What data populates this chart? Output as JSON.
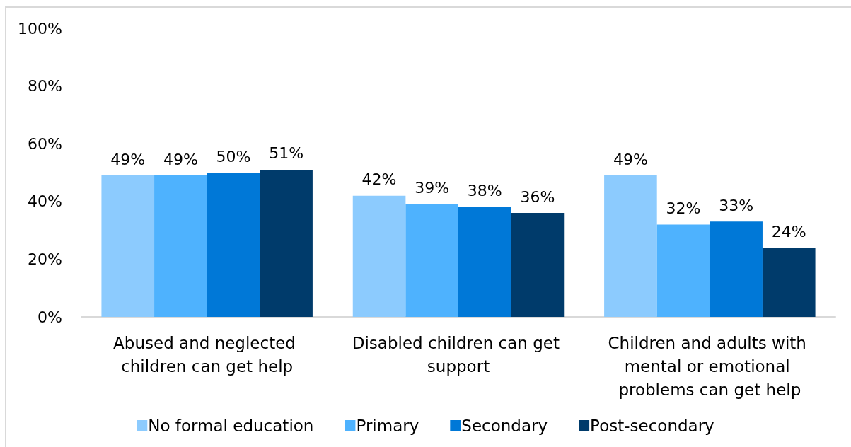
{
  "chart_data": {
    "type": "bar",
    "categories": [
      "Abused and neglected children can get help",
      "Disabled children can get support",
      "Children and adults with mental or emotional problems can get help"
    ],
    "series": [
      {
        "name": "No formal education",
        "color": "#8ccbfe",
        "values": [
          49,
          42,
          49
        ],
        "value_labels": [
          "49%",
          "42%",
          "49%"
        ]
      },
      {
        "name": "Primary",
        "color": "#4eb2fe",
        "values": [
          49,
          39,
          32
        ],
        "value_labels": [
          "49%",
          "39%",
          "32%"
        ]
      },
      {
        "name": "Secondary",
        "color": "#0078d7",
        "values": [
          50,
          38,
          33
        ],
        "value_labels": [
          "50%",
          "38%",
          "33%"
        ]
      },
      {
        "name": "Post-secondary",
        "color": "#003b6b",
        "values": [
          51,
          36,
          24
        ],
        "value_labels": [
          "51%",
          "36%",
          "24%"
        ]
      }
    ],
    "ylim": [
      0,
      100
    ],
    "yticks": [
      {
        "value": 0,
        "label": "0%"
      },
      {
        "value": 20,
        "label": "20%"
      },
      {
        "value": 40,
        "label": "40%"
      },
      {
        "value": 60,
        "label": "60%"
      },
      {
        "value": 80,
        "label": "80%"
      },
      {
        "value": 100,
        "label": "100%"
      }
    ],
    "legend": "bottom"
  }
}
